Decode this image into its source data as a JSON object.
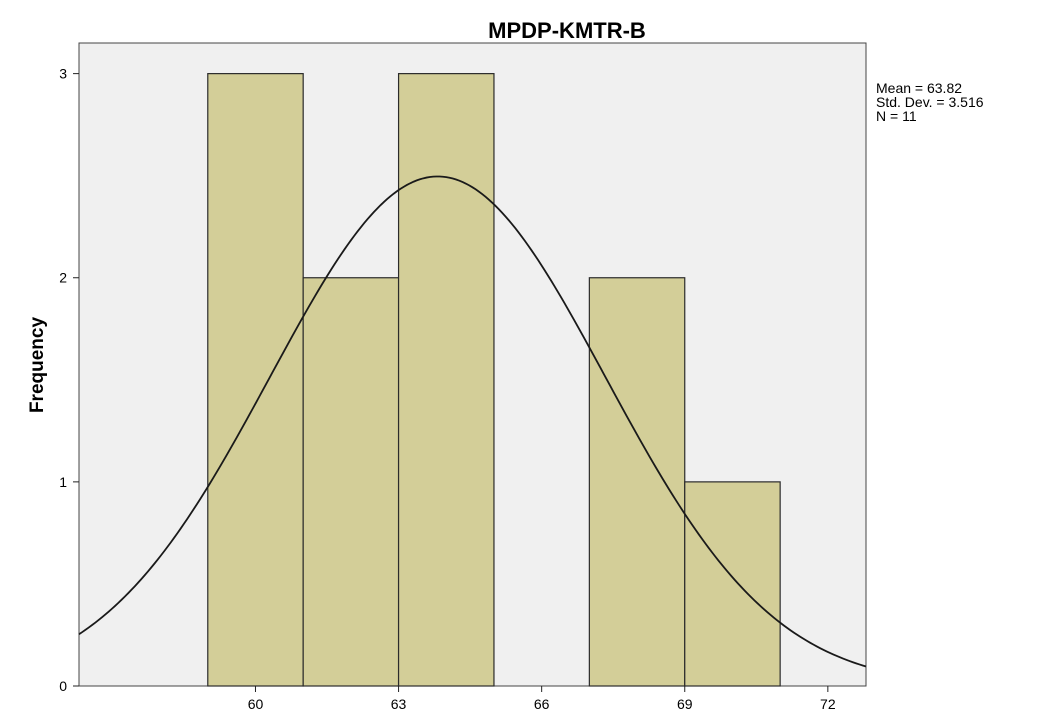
{
  "chart_data": {
    "type": "bar",
    "title": "MPDP-KMTR-B",
    "xlabel": "",
    "ylabel": "Frequency",
    "bins": [
      {
        "start": 59,
        "end": 61,
        "count": 3
      },
      {
        "start": 61,
        "end": 63,
        "count": 2
      },
      {
        "start": 63,
        "end": 65,
        "count": 3
      },
      {
        "start": 65,
        "end": 67,
        "count": 0
      },
      {
        "start": 67,
        "end": 69,
        "count": 2
      },
      {
        "start": 69,
        "end": 71,
        "count": 1
      }
    ],
    "xlim": [
      56.3,
      72.8
    ],
    "ylim": [
      0,
      3.15
    ],
    "x_ticks": [
      60,
      63,
      66,
      69,
      72
    ],
    "y_ticks": [
      0,
      1,
      2,
      3
    ],
    "normal_curve": {
      "mean": 63.82,
      "sd": 3.516,
      "n": 11,
      "bin_width": 2
    },
    "stats": [
      "Mean = 63.82",
      "Std. Dev. = 3.516",
      "N = 11"
    ],
    "grid": false,
    "legend": "none",
    "colors": {
      "bar_fill": "#D3CE98",
      "bar_stroke": "#2b2b2b",
      "plot_bg": "#F0F0F0",
      "curve": "#1a1a1a"
    }
  }
}
